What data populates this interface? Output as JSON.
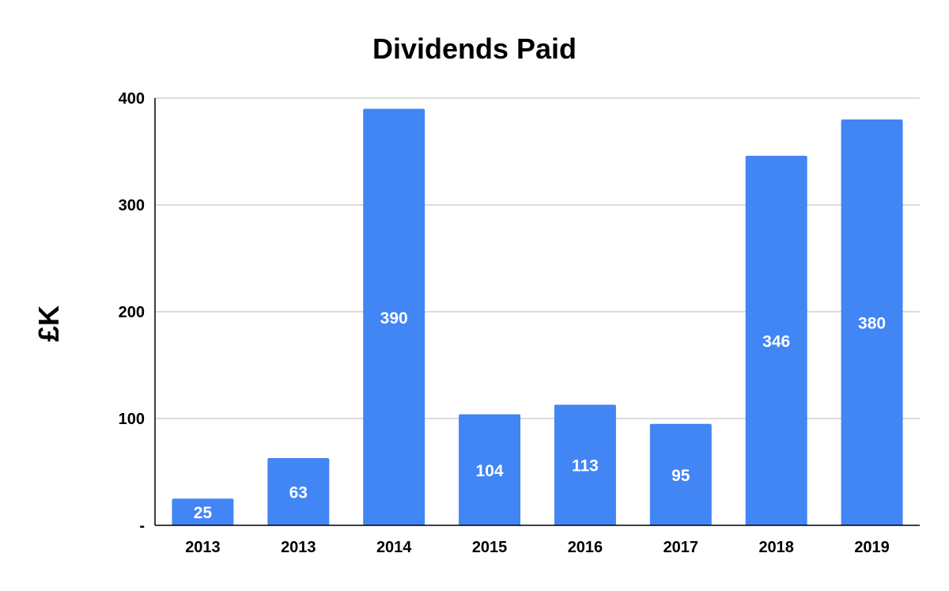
{
  "chart_data": {
    "type": "bar",
    "title": "Dividends Paid",
    "xlabel": "",
    "ylabel": "£K",
    "categories": [
      "2013",
      "2013",
      "2014",
      "2015",
      "2016",
      "2017",
      "2018",
      "2019"
    ],
    "series": [
      {
        "values": [
          25,
          63,
          390,
          104,
          113,
          95,
          346,
          380
        ],
        "color": "#4285f4"
      }
    ],
    "data_labels": [
      "25",
      "63",
      "390",
      "104",
      "113",
      "95",
      "346",
      "380"
    ],
    "ylim": [
      0,
      400
    ],
    "yticks": [
      0,
      100,
      200,
      300,
      400
    ],
    "ytick_labels": [
      "-",
      "100",
      "200",
      "300",
      "400"
    ],
    "grid": true,
    "legend": "none"
  }
}
